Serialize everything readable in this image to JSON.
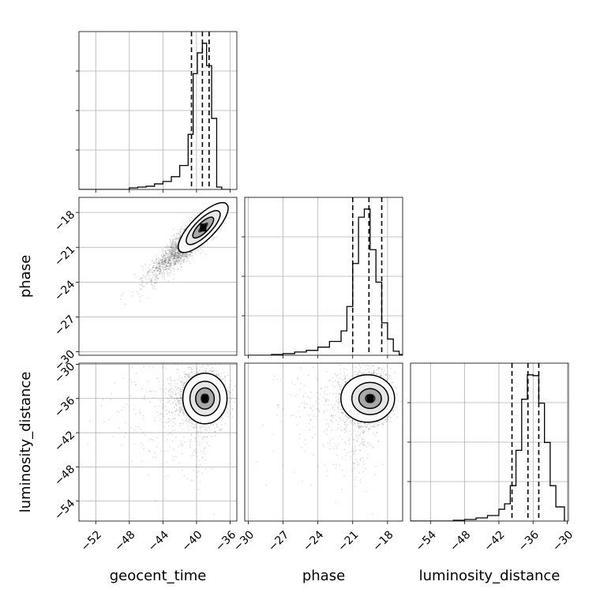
{
  "chart_data": {
    "type": "corner",
    "parameters": [
      "geocent_time",
      "phase",
      "luminosity_distance"
    ],
    "panels": [
      {
        "id": "hist-geocent_time",
        "kind": "histogram",
        "xlim": [
          -54,
          -35.2
        ],
        "bin_edges": [
          -54.0,
          -53.0,
          -52.0,
          -51.0,
          -50.0,
          -49.0,
          -48.0,
          -47.0,
          -46.0,
          -45.0,
          -44.0,
          -43.0,
          -42.0,
          -41.0,
          -40.4,
          -39.9,
          -39.3,
          -38.8,
          -38.2,
          -37.6,
          -37.0,
          -36.0
        ],
        "counts": [
          0,
          0,
          0,
          0,
          0,
          0,
          2,
          3,
          4,
          7,
          10,
          16,
          30,
          69,
          145,
          171,
          183,
          155,
          89,
          3,
          0
        ],
        "quantiles": [
          -40.6,
          -39.3,
          -38.5
        ],
        "xticks": [
          -52,
          -48,
          -44,
          -40,
          -36
        ],
        "grid": true
      },
      {
        "id": "hist-phase",
        "kind": "histogram",
        "xlim": [
          -30.3,
          -16.7
        ],
        "bin_edges": [
          -30.0,
          -29.0,
          -28.0,
          -27.0,
          -26.0,
          -25.0,
          -24.0,
          -23.0,
          -22.0,
          -21.5,
          -21.0,
          -20.5,
          -20.0,
          -19.5,
          -19.0,
          -18.5,
          -18.0,
          -17.5,
          -17.0,
          -16.7
        ],
        "counts": [
          0,
          0,
          1,
          2,
          4,
          6,
          10,
          17,
          30,
          60,
          113,
          170,
          180,
          130,
          90,
          40,
          20,
          5,
          1
        ],
        "quantiles": [
          -21.0,
          -19.6,
          -18.5
        ],
        "xticks": [
          -30,
          -27,
          -24,
          -21,
          -18
        ],
        "grid": true
      },
      {
        "id": "hist-luminosity_distance",
        "kind": "histogram",
        "xlim": [
          -57.5,
          -29.8
        ],
        "bin_edges": [
          -57.5,
          -56.0,
          -54.0,
          -52.0,
          -50.0,
          -48.0,
          -46.0,
          -44.0,
          -42.0,
          -41.0,
          -40.0,
          -39.0,
          -38.0,
          -37.0,
          -36.0,
          -35.0,
          -34.0,
          -33.0,
          -32.0,
          -30.5
        ],
        "counts": [
          0,
          0,
          0,
          0,
          1,
          2,
          4,
          7,
          15,
          22,
          45,
          90,
          155,
          186,
          185,
          150,
          100,
          45,
          18
        ],
        "quantiles": [
          -39.7,
          -36.9,
          -35.0
        ],
        "xticks": [
          -54,
          -48,
          -42,
          -36,
          -30
        ],
        "grid": true
      },
      {
        "id": "scatter-geocent_time-phase",
        "kind": "2d-density",
        "x": "geocent_time",
        "y": "phase",
        "xlim": [
          -54,
          -35.2
        ],
        "ylim": [
          -30.3,
          -16.7
        ],
        "peak": [
          -39.2,
          -19.3
        ],
        "yticks": [
          -30,
          -27,
          -24,
          -21,
          -18
        ],
        "grid": true
      },
      {
        "id": "scatter-geocent_time-luminosity_distance",
        "kind": "2d-density",
        "x": "geocent_time",
        "y": "luminosity_distance",
        "xlim": [
          -54,
          -35.2
        ],
        "ylim": [
          -57.5,
          -29.8
        ],
        "peak": [
          -39.0,
          -36.0
        ],
        "xticks": [
          -52,
          -48,
          -44,
          -40,
          -36
        ],
        "yticks": [
          -54,
          -48,
          -42,
          -36,
          -30
        ],
        "grid": true
      },
      {
        "id": "scatter-phase-luminosity_distance",
        "kind": "2d-density",
        "x": "phase",
        "y": "luminosity_distance",
        "xlim": [
          -30.3,
          -16.7
        ],
        "ylim": [
          -57.5,
          -29.8
        ],
        "peak": [
          -19.5,
          -36.0
        ],
        "xticks": [
          -30,
          -27,
          -24,
          -21,
          -18
        ],
        "grid": true
      }
    ]
  }
}
